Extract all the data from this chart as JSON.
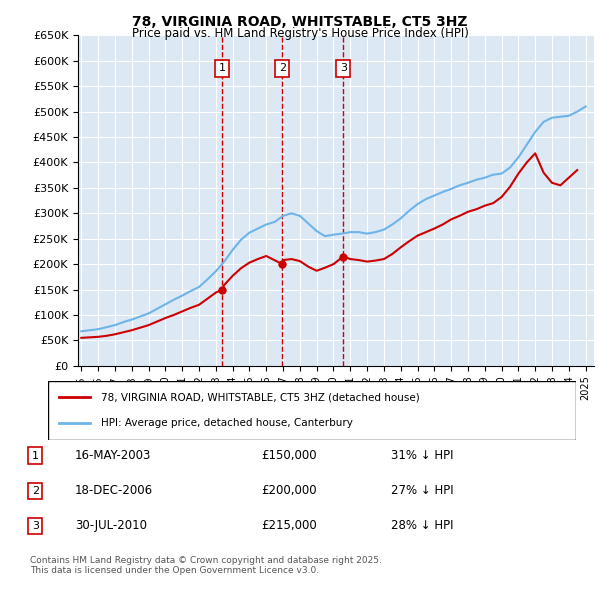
{
  "title": "78, VIRGINIA ROAD, WHITSTABLE, CT5 3HZ",
  "subtitle": "Price paid vs. HM Land Registry's House Price Index (HPI)",
  "legend_line1": "78, VIRGINIA ROAD, WHITSTABLE, CT5 3HZ (detached house)",
  "legend_line2": "HPI: Average price, detached house, Canterbury",
  "sale_entries": [
    {
      "num": 1,
      "date": "16-MAY-2003",
      "price": "£150,000",
      "pct": "31% ↓ HPI"
    },
    {
      "num": 2,
      "date": "18-DEC-2006",
      "price": "£200,000",
      "pct": "27% ↓ HPI"
    },
    {
      "num": 3,
      "date": "30-JUL-2010",
      "price": "£215,000",
      "pct": "28% ↓ HPI"
    }
  ],
  "footnote": "Contains HM Land Registry data © Crown copyright and database right 2025.\nThis data is licensed under the Open Government Licence v3.0.",
  "hpi_color": "#6eb4e8",
  "red_color": "#cc0000",
  "marker_color": "#cc0000",
  "bg_color": "#dce9f5",
  "plot_bg": "#dce9f5",
  "ylim": [
    0,
    650000
  ],
  "yticks": [
    0,
    50000,
    100000,
    150000,
    200000,
    250000,
    300000,
    350000,
    400000,
    450000,
    500000,
    550000,
    600000,
    650000
  ],
  "sale_years": [
    2003.37,
    2006.96,
    2010.58
  ],
  "sale_prices": [
    150000,
    200000,
    215000
  ],
  "sale_labels": [
    "1",
    "2",
    "3"
  ],
  "hpi_years": [
    1995,
    1995.5,
    1996,
    1996.5,
    1997,
    1997.5,
    1998,
    1998.5,
    1999,
    1999.5,
    2000,
    2000.5,
    2001,
    2001.5,
    2002,
    2002.5,
    2003,
    2003.5,
    2004,
    2004.5,
    2005,
    2005.5,
    2006,
    2006.5,
    2007,
    2007.5,
    2008,
    2008.5,
    2009,
    2009.5,
    2010,
    2010.5,
    2011,
    2011.5,
    2012,
    2012.5,
    2013,
    2013.5,
    2014,
    2014.5,
    2015,
    2015.5,
    2016,
    2016.5,
    2017,
    2017.5,
    2018,
    2018.5,
    2019,
    2019.5,
    2020,
    2020.5,
    2021,
    2021.5,
    2022,
    2022.5,
    2023,
    2023.5,
    2024,
    2024.5,
    2025
  ],
  "hpi_values": [
    68000,
    70000,
    72000,
    76000,
    80000,
    86000,
    91000,
    97000,
    103000,
    112000,
    121000,
    130000,
    138000,
    147000,
    155000,
    170000,
    186000,
    205000,
    228000,
    248000,
    262000,
    270000,
    278000,
    283000,
    295000,
    300000,
    295000,
    280000,
    265000,
    255000,
    258000,
    260000,
    263000,
    263000,
    260000,
    263000,
    268000,
    278000,
    290000,
    305000,
    318000,
    328000,
    335000,
    342000,
    348000,
    355000,
    360000,
    366000,
    370000,
    376000,
    378000,
    390000,
    410000,
    435000,
    460000,
    480000,
    488000,
    490000,
    492000,
    500000,
    510000
  ],
  "red_years": [
    1995,
    1995.5,
    1996,
    1996.5,
    1997,
    1997.5,
    1998,
    1998.5,
    1999,
    1999.5,
    2000,
    2000.5,
    2001,
    2001.5,
    2002,
    2002.5,
    2003,
    2003.37,
    2003.5,
    2004,
    2004.5,
    2005,
    2005.5,
    2006,
    2006.96,
    2007,
    2007.5,
    2008,
    2008.5,
    2009,
    2009.5,
    2010,
    2010.58,
    2011,
    2011.5,
    2012,
    2012.5,
    2013,
    2013.5,
    2014,
    2014.5,
    2015,
    2015.5,
    2016,
    2016.5,
    2017,
    2017.5,
    2018,
    2018.5,
    2019,
    2019.5,
    2020,
    2020.5,
    2021,
    2021.5,
    2022,
    2022.5,
    2023,
    2023.5,
    2024,
    2024.5
  ],
  "red_values": [
    55000,
    56000,
    57000,
    59000,
    62000,
    66000,
    70000,
    75000,
    80000,
    87000,
    94000,
    100000,
    107000,
    114000,
    120000,
    132000,
    144000,
    150000,
    159000,
    177000,
    192000,
    203000,
    210000,
    216000,
    200000,
    208000,
    210000,
    206000,
    195000,
    187000,
    193000,
    200000,
    215000,
    210000,
    208000,
    205000,
    207000,
    210000,
    220000,
    233000,
    245000,
    256000,
    263000,
    270000,
    278000,
    288000,
    295000,
    303000,
    308000,
    315000,
    320000,
    332000,
    352000,
    378000,
    400000,
    418000,
    380000,
    360000,
    355000,
    370000,
    385000
  ]
}
